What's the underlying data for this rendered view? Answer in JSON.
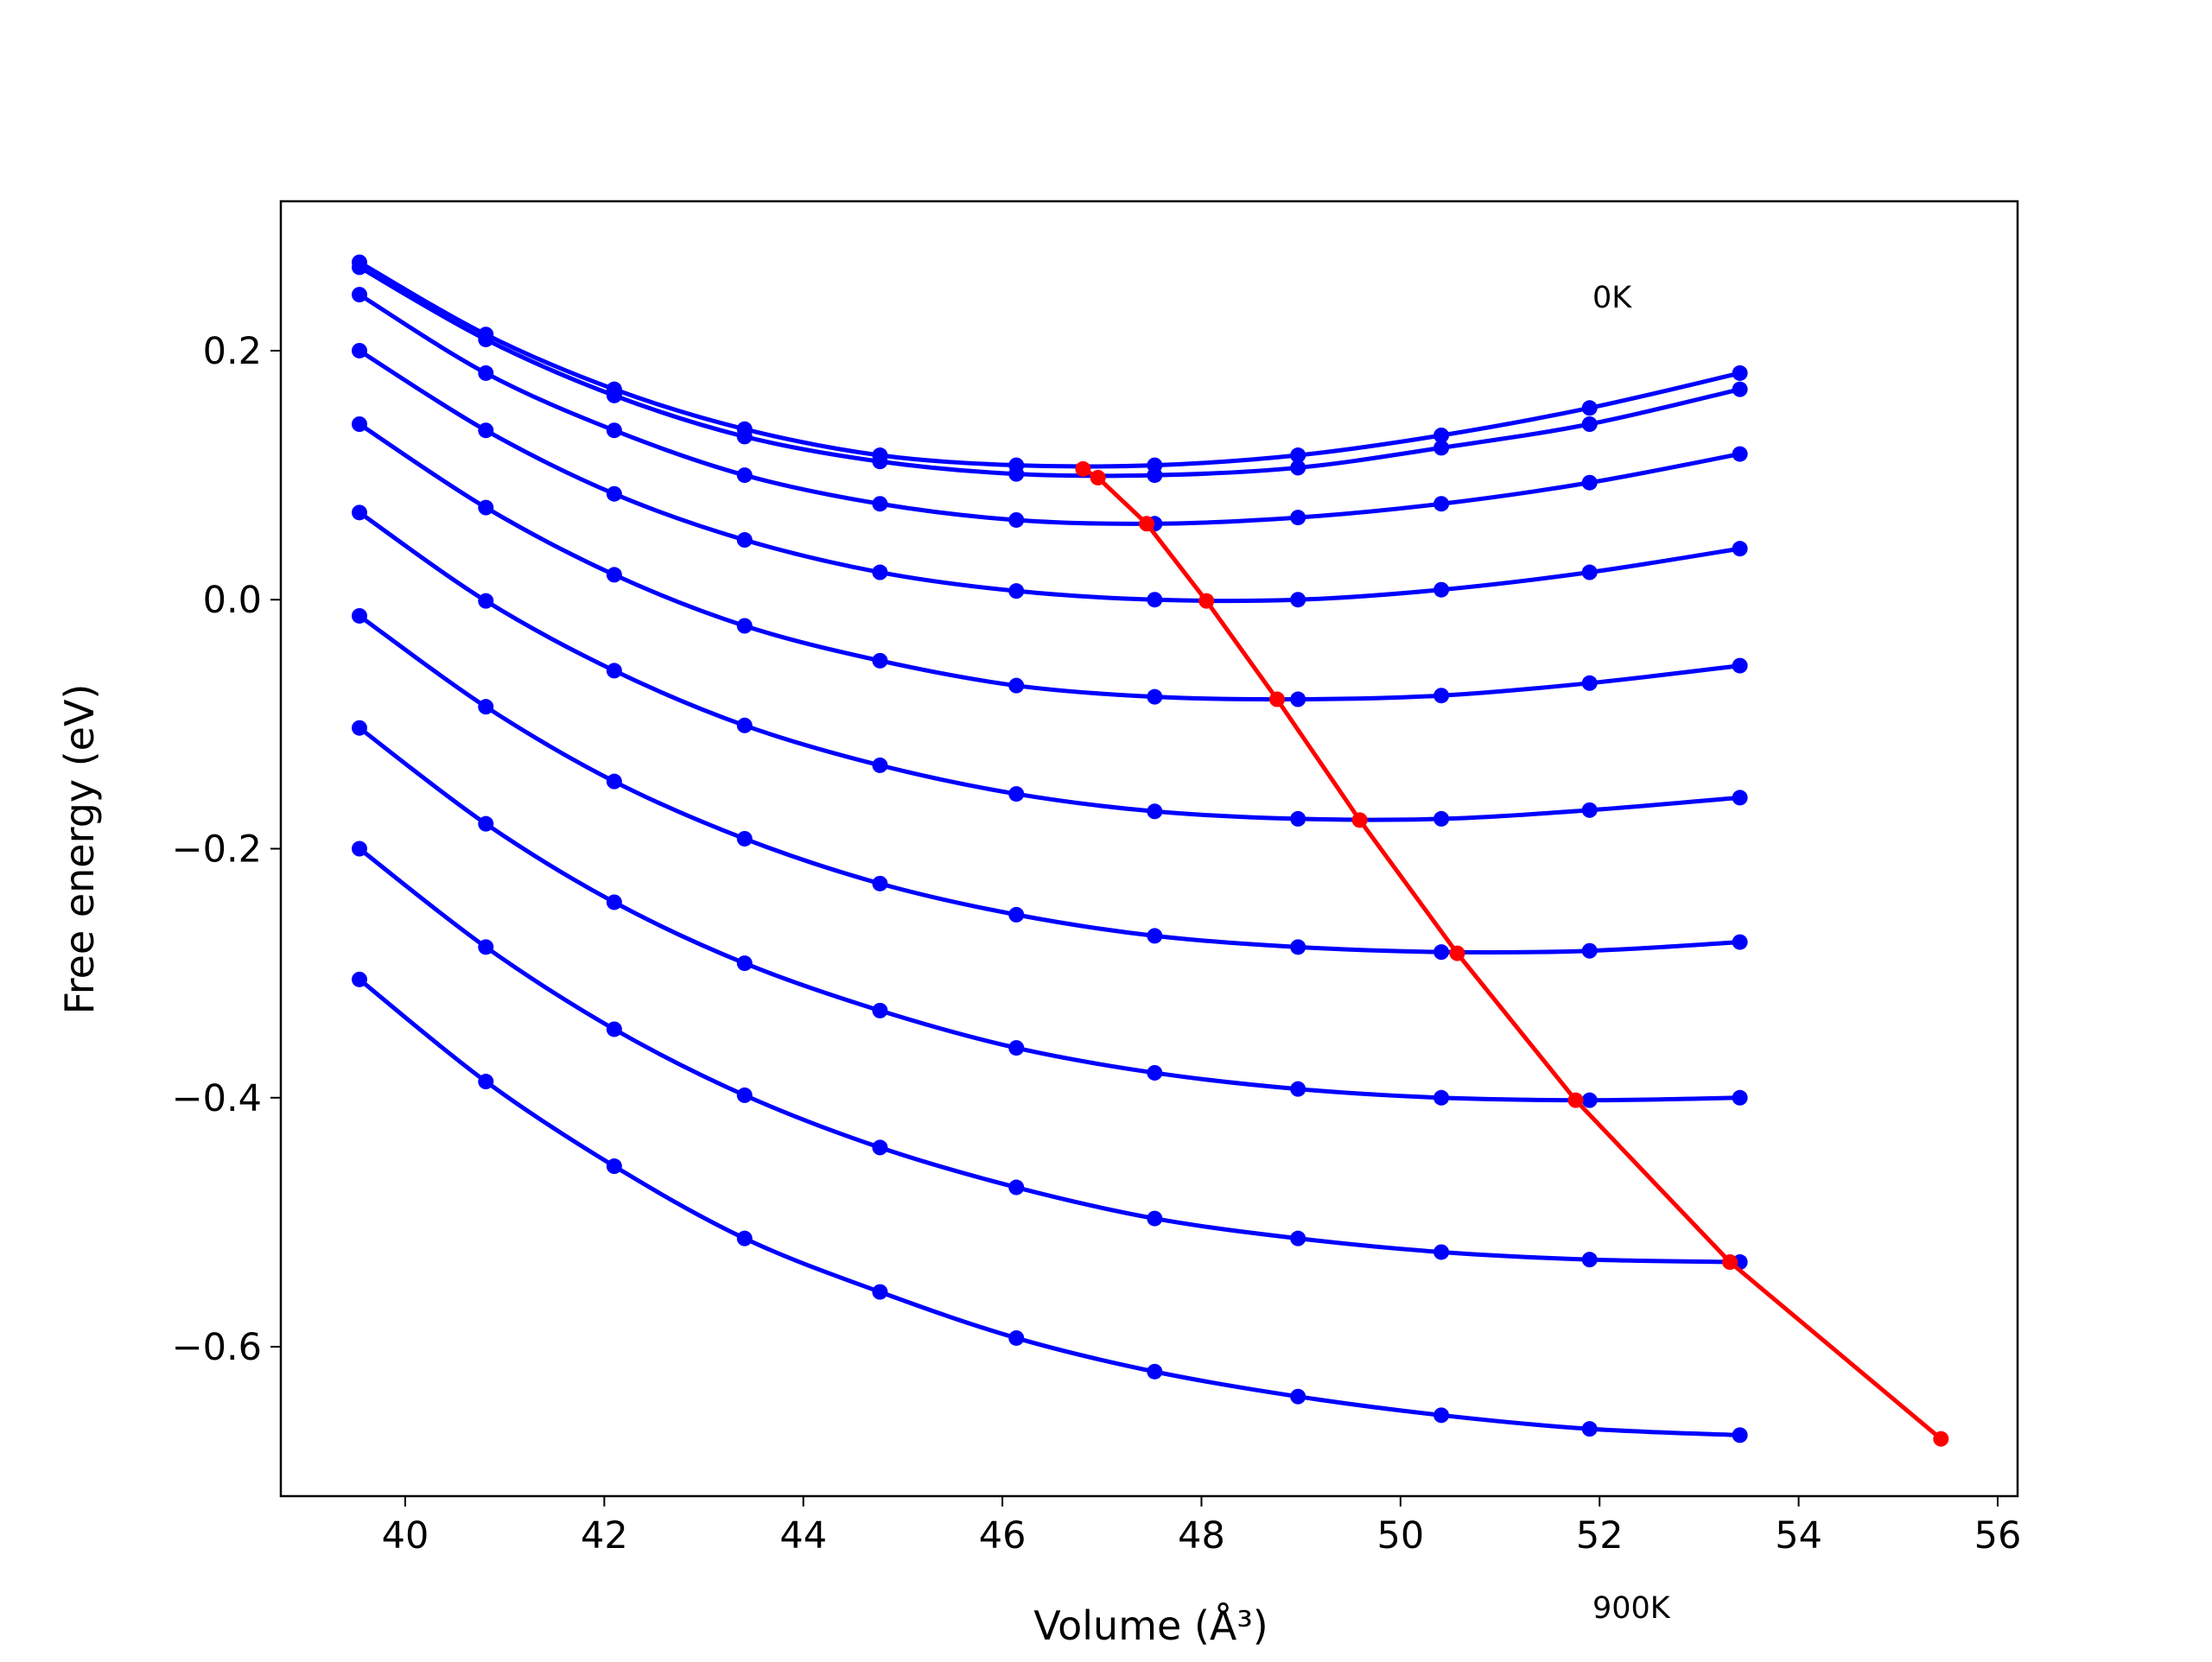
{
  "chart_data": {
    "type": "line",
    "xlabel": "Volume (Å³)",
    "ylabel": "Free energy (eV)",
    "xlim": [
      38.75,
      56.2
    ],
    "ylim": [
      -0.72,
      0.32
    ],
    "xticks": [
      40,
      42,
      44,
      46,
      48,
      50,
      52,
      54,
      56
    ],
    "yticks": [
      {
        "value": -0.6,
        "label": "−0.6"
      },
      {
        "value": -0.4,
        "label": "−0.4"
      },
      {
        "value": -0.2,
        "label": "−0.2"
      },
      {
        "value": 0,
        "label": "0.0"
      },
      0.2
    ],
    "annotations": [
      "0K",
      "900K"
    ],
    "series": [
      {
        "color": "#0000ff",
        "x": [
          39.54,
          40.81,
          42.1,
          43.41,
          44.77,
          46.14,
          47.53,
          48.97,
          50.41,
          51.9,
          53.41
        ],
        "values": [
          0.271,
          0.213,
          0.169,
          0.137,
          0.116,
          0.108,
          0.108,
          0.116,
          0.132,
          0.154,
          0.182
        ]
      },
      {
        "color": "#0000ff",
        "x": [
          39.54,
          40.81,
          42.1,
          43.41,
          44.77,
          46.14,
          47.53,
          48.97,
          50.41,
          51.9,
          53.41
        ],
        "values": [
          0.267,
          0.209,
          0.164,
          0.131,
          0.111,
          0.101,
          0.1,
          0.106,
          0.122,
          0.141,
          0.169
        ]
      },
      {
        "color": "#0000ff",
        "x": [
          39.54,
          40.81,
          42.1,
          43.41,
          44.77,
          46.14,
          47.53,
          48.97,
          50.41,
          51.9,
          53.41
        ],
        "values": [
          0.245,
          0.182,
          0.136,
          0.1,
          0.077,
          0.064,
          0.061,
          0.066,
          0.077,
          0.094,
          0.117
        ]
      },
      {
        "color": "#0000ff",
        "x": [
          39.54,
          40.81,
          42.1,
          43.41,
          44.77,
          46.14,
          47.53,
          48.97,
          50.41,
          51.9,
          53.41
        ],
        "values": [
          0.2,
          0.136,
          0.085,
          0.048,
          0.022,
          0.007,
          0.0,
          0.0,
          0.008,
          0.022,
          0.041
        ]
      },
      {
        "color": "#0000ff",
        "x": [
          39.54,
          40.81,
          42.1,
          43.41,
          44.77,
          46.14,
          47.53,
          48.97,
          50.41,
          51.9,
          53.41
        ],
        "values": [
          0.141,
          0.074,
          0.02,
          -0.021,
          -0.049,
          -0.069,
          -0.078,
          -0.08,
          -0.077,
          -0.067,
          -0.053
        ]
      },
      {
        "color": "#0000ff",
        "x": [
          39.54,
          40.81,
          42.1,
          43.41,
          44.77,
          46.14,
          47.53,
          48.97,
          50.41,
          51.9,
          53.41
        ],
        "values": [
          0.07,
          -0.001,
          -0.057,
          -0.101,
          -0.133,
          -0.156,
          -0.17,
          -0.176,
          -0.176,
          -0.169,
          -0.159
        ]
      },
      {
        "color": "#0000ff",
        "x": [
          39.54,
          40.81,
          42.1,
          43.41,
          44.77,
          46.14,
          47.53,
          48.97,
          50.41,
          51.9,
          53.41
        ],
        "values": [
          -0.013,
          -0.086,
          -0.146,
          -0.192,
          -0.228,
          -0.253,
          -0.27,
          -0.279,
          -0.283,
          -0.282,
          -0.275
        ]
      },
      {
        "color": "#0000ff",
        "x": [
          39.54,
          40.81,
          42.1,
          43.41,
          44.77,
          46.14,
          47.53,
          48.97,
          50.41,
          51.9,
          53.41
        ],
        "values": [
          -0.103,
          -0.18,
          -0.243,
          -0.292,
          -0.33,
          -0.36,
          -0.38,
          -0.393,
          -0.4,
          -0.402,
          -0.4
        ]
      },
      {
        "color": "#0000ff",
        "x": [
          39.54,
          40.81,
          42.1,
          43.41,
          44.77,
          46.14,
          47.53,
          48.97,
          50.41,
          51.9,
          53.41
        ],
        "values": [
          -0.2,
          -0.279,
          -0.345,
          -0.398,
          -0.44,
          -0.472,
          -0.497,
          -0.513,
          -0.524,
          -0.53,
          -0.532
        ]
      },
      {
        "color": "#0000ff",
        "x": [
          39.54,
          40.81,
          42.1,
          43.41,
          44.77,
          46.14,
          47.53,
          48.97,
          50.41,
          51.9,
          53.41
        ],
        "values": [
          -0.305,
          -0.387,
          -0.455,
          -0.513,
          -0.556,
          -0.593,
          -0.62,
          -0.64,
          -0.655,
          -0.666,
          -0.671
        ]
      },
      {
        "color": "#ff0000",
        "x": [
          46.81,
          46.96,
          47.45,
          48.05,
          48.76,
          49.59,
          50.57,
          51.76,
          53.31,
          55.43
        ],
        "values": [
          0.105,
          0.098,
          0.061,
          -0.001,
          -0.08,
          -0.177,
          -0.284,
          -0.402,
          -0.532,
          -0.674
        ]
      }
    ]
  }
}
